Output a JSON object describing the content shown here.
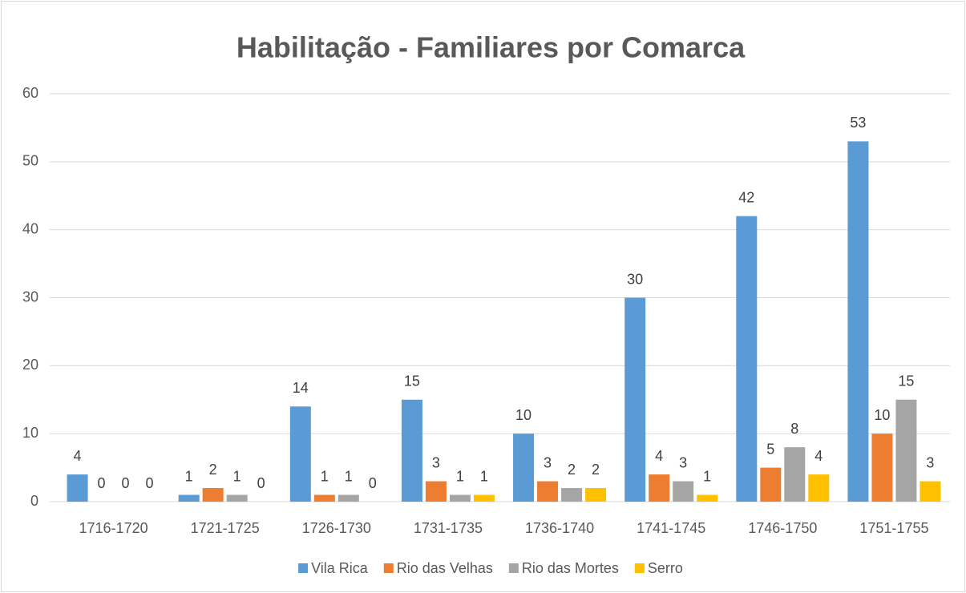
{
  "chart_data": {
    "type": "bar",
    "title": "Habilitação - Familiares por Comarca",
    "categories": [
      "1716-1720",
      "1721-1725",
      "1726-1730",
      "1731-1735",
      "1736-1740",
      "1741-1745",
      "1746-1750",
      "1751-1755"
    ],
    "series": [
      {
        "name": "Vila Rica",
        "color": "#5b9bd5",
        "values": [
          4,
          1,
          14,
          15,
          10,
          30,
          42,
          53
        ]
      },
      {
        "name": "Rio das Velhas",
        "color": "#ed7d31",
        "values": [
          0,
          2,
          1,
          3,
          3,
          4,
          5,
          10
        ]
      },
      {
        "name": "Rio das Mortes",
        "color": "#a5a5a5",
        "values": [
          0,
          1,
          1,
          1,
          2,
          3,
          8,
          15
        ]
      },
      {
        "name": "Serro",
        "color": "#ffc000",
        "values": [
          0,
          0,
          0,
          1,
          2,
          1,
          4,
          3
        ]
      }
    ],
    "ylim": [
      0,
      60
    ],
    "yticks": [
      0,
      10,
      20,
      30,
      40,
      50,
      60
    ],
    "grid": true,
    "legend": "bottom"
  }
}
